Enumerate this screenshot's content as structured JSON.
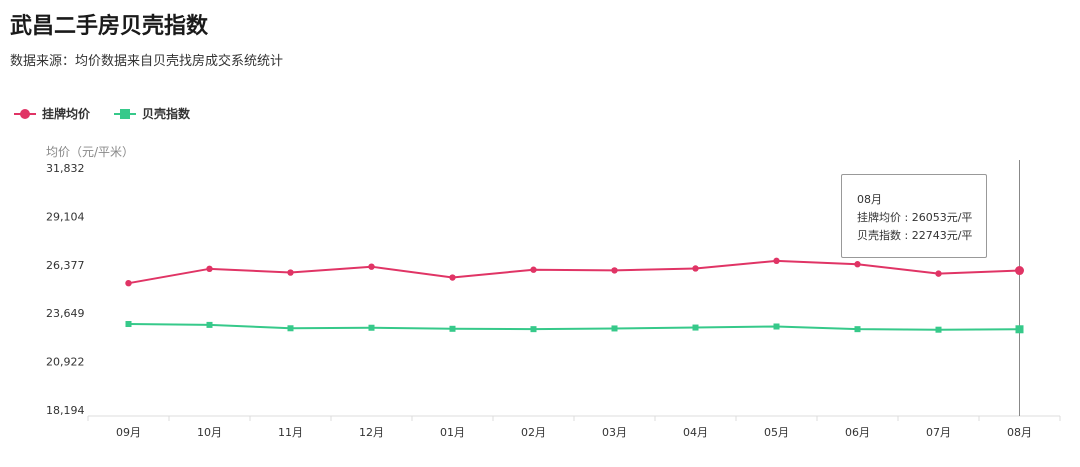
{
  "header": {
    "title": "武昌二手房贝壳指数",
    "subtitle": "数据来源：均价数据来自贝壳找房成交系统统计"
  },
  "chart_data": {
    "type": "line",
    "categories": [
      "09月",
      "10月",
      "11月",
      "12月",
      "01月",
      "02月",
      "03月",
      "04月",
      "05月",
      "06月",
      "07月",
      "08月"
    ],
    "series": [
      {
        "name": "挂牌均价",
        "color": "#e03465",
        "marker": "circle",
        "values": [
          25340,
          26150,
          25940,
          26270,
          25660,
          26100,
          26060,
          26170,
          26600,
          26410,
          25880,
          26053
        ]
      },
      {
        "name": "贝壳指数",
        "color": "#36c98a",
        "marker": "square",
        "values": [
          23040,
          22990,
          22800,
          22830,
          22770,
          22750,
          22790,
          22840,
          22900,
          22750,
          22720,
          22743
        ]
      }
    ],
    "ylabel": "均价（元/平米）",
    "y_ticks": [
      "31,832",
      "29,104",
      "26,377",
      "23,649",
      "20,922",
      "18,194"
    ],
    "ylim": [
      18194,
      31832
    ],
    "grid": false,
    "legend_position": "top-left",
    "tooltip": {
      "title": "08月",
      "line1": "挂牌均价 : 26053元/平",
      "line2": "贝壳指数 : 22743元/平"
    }
  }
}
